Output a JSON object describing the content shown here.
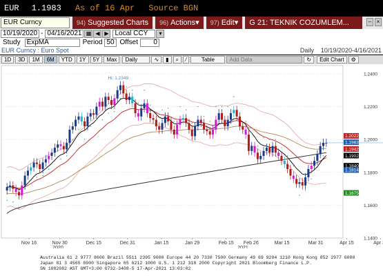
{
  "header": {
    "ticker": "EUR",
    "price": "1.1983",
    "asof": "As of 16 Apr",
    "source": "Source BGN"
  },
  "toolbar": {
    "security": "EUR Curncy",
    "suggested": {
      "num": "94)",
      "label": "Suggested Charts"
    },
    "actions": {
      "num": "96)",
      "label": "Actions"
    },
    "edit": {
      "num": "97)",
      "label": "Edit"
    },
    "page": "G 21: TEKNIK COZUMLEM..."
  },
  "controls": {
    "date_from": "10/19/2020",
    "date_to": "04/16/2021",
    "currency": "Local CCY",
    "study_label": "Study",
    "study": "ExpMA",
    "period_label": "Period",
    "period": "50",
    "offset_label": "Offset",
    "offset": "0"
  },
  "legend": {
    "name": "EUR Curncy : Euro Spot",
    "freq": "Daily",
    "range": "10/19/2020-4/16/2021"
  },
  "ranges": [
    "1D",
    "3D",
    "1M",
    "6M",
    "YTD",
    "1Y",
    "5Y",
    "Max"
  ],
  "selected_range": "6M",
  "period_select": "Daily",
  "table_btn": "Table",
  "add_data": "Add Data",
  "edit_chart": "Edit Chart",
  "chart_data": {
    "type": "candlestick",
    "title": "EUR Curncy : Euro Spot",
    "x_ticks": [
      "Nov 16",
      "Nov 30",
      "Dec 15",
      "Dec 31",
      "Jan 15",
      "Jan 29",
      "Feb 15",
      "Feb 26",
      "Mar 15",
      "Mar 31",
      "Apr 15",
      "Apr 30"
    ],
    "x_year_labels": [
      "2020",
      "2021"
    ],
    "ylim": [
      1.16,
      1.245
    ],
    "y_ticks": [
      "1.2400",
      "1.2200",
      "1.2000",
      "1.1800",
      "1.1600",
      "1.1400"
    ],
    "annotations": [
      "Hi: 1.2349"
    ],
    "price_labels": [
      {
        "value": "1.2022",
        "color": "#c41e1e"
      },
      {
        "value": "1.1983",
        "color": "#1a5fb4"
      },
      {
        "value": "1.1942",
        "color": "#c41e1e"
      },
      {
        "value": "1.1902",
        "color": "#000000"
      },
      {
        "value": "1.1840",
        "color": "#000000"
      },
      {
        "value": "1.1814",
        "color": "#1a5fb4"
      },
      {
        "value": "1.1675",
        "color": "#2a8a2a"
      }
    ],
    "closes": [
      1.171,
      1.172,
      1.17,
      1.168,
      1.166,
      1.172,
      1.178,
      1.181,
      1.183,
      1.186,
      1.185,
      1.182,
      1.186,
      1.188,
      1.19,
      1.192,
      1.195,
      1.197,
      1.196,
      1.194,
      1.198,
      1.206,
      1.208,
      1.212,
      1.214,
      1.211,
      1.208,
      1.214,
      1.216,
      1.215,
      1.22,
      1.223,
      1.22,
      1.226,
      1.224,
      1.221,
      1.225,
      1.23,
      1.233,
      1.228,
      1.224,
      1.226,
      1.222,
      1.216,
      1.214,
      1.219,
      1.222,
      1.216,
      1.213,
      1.212,
      1.208,
      1.206,
      1.21,
      1.214,
      1.211,
      1.206,
      1.203,
      1.209,
      1.212,
      1.213,
      1.21,
      1.206,
      1.202,
      1.208,
      1.212,
      1.21,
      1.206,
      1.205,
      1.203,
      1.206,
      1.212,
      1.216,
      1.212,
      1.208,
      1.212,
      1.216,
      1.218,
      1.214,
      1.208,
      1.206,
      1.203,
      1.193,
      1.196,
      1.192,
      1.188,
      1.19,
      1.193,
      1.195,
      1.192,
      1.196,
      1.192,
      1.19,
      1.187,
      1.185,
      1.182,
      1.178,
      1.176,
      1.173,
      1.174,
      1.172,
      1.177,
      1.182,
      1.184,
      1.187,
      1.191,
      1.196,
      1.198,
      1.198
    ],
    "series": [
      {
        "name": "",
        "color": "#e8a0a0"
      },
      {
        "name": "",
        "color": "#c41e1e"
      },
      {
        "name": "",
        "color": "#000000"
      },
      {
        "name": "",
        "color": "#b08850"
      },
      {
        "name": "",
        "color": "#333333"
      }
    ]
  },
  "footer_lines": [
    "Australia 61 2 9777 8600 Brazil 5511 2395 9000 Europe 44 20 7330 7500 Germany 49 69 9204 1210 Hong Kong 852 2977 6000",
    "Japan 81 3 4565 8900       Singapore 65 6212 1000       U.S. 1 212 318 2000       Copyright 2021 Bloomberg Finance L.P.",
    "                                                           SN 1082082 AST  GMT+3:00 G732-3408-5 17-Apr-2021 13:03:02"
  ]
}
